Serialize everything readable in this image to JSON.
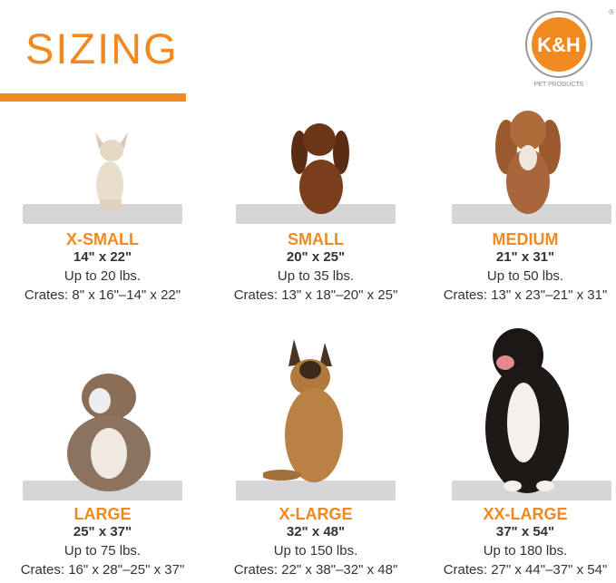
{
  "title": "SIZING",
  "brand": {
    "name": "K&H",
    "tagline": "PET PRODUCTS",
    "registered": "®",
    "color": "#f0891f"
  },
  "accent": "#f0891f",
  "sizes": [
    {
      "name": "X-SMALL",
      "dimensions": "14\" x 22\"",
      "weight": "Up to 20 lbs.",
      "crates": "Crates: 8\" x 16\"–14\" x 22\"",
      "dog": "chihuahua"
    },
    {
      "name": "SMALL",
      "dimensions": "20\" x 25\"",
      "weight": "Up to 35 lbs.",
      "crates": "Crates: 13\" x 18\"–20\" x 25\"",
      "dog": "dachshund"
    },
    {
      "name": "MEDIUM",
      "dimensions": "21\" x 31\"",
      "weight": "Up to 50 lbs.",
      "crates": "Crates: 13\" x 23\"–21\" x 31\"",
      "dog": "cavalier-spaniel"
    },
    {
      "name": "LARGE",
      "dimensions": "25\" x 37\"",
      "weight": "Up to 75 lbs.",
      "crates": "Crates: 16\" x 28\"–25\" x 37\"",
      "dog": "bulldog"
    },
    {
      "name": "X-LARGE",
      "dimensions": "32\" x 48\"",
      "weight": "Up to 150 lbs.",
      "crates": "Crates: 22\" x 38\"–32\" x 48\"",
      "dog": "german-shepherd"
    },
    {
      "name": "XX-LARGE",
      "dimensions": "37\" x 54\"",
      "weight": "Up to 180 lbs.",
      "crates": "Crates: 27\" x 44\"–37\" x 54\"",
      "dog": "bernese-mountain-dog"
    }
  ]
}
